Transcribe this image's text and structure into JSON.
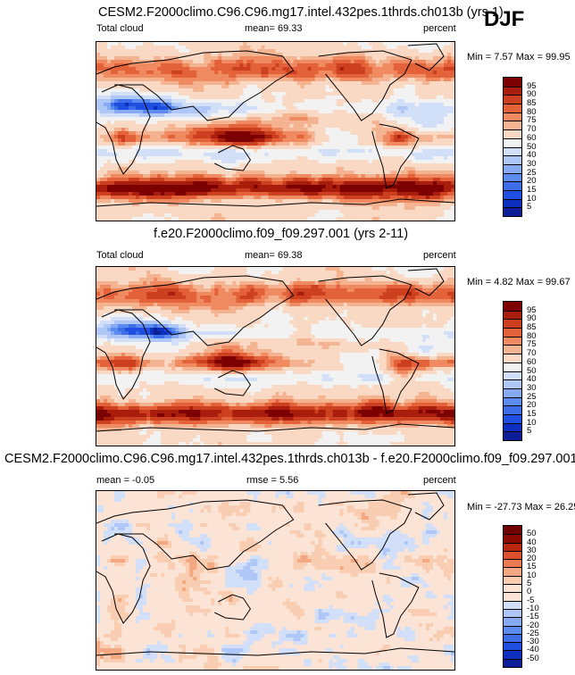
{
  "season": "DJF",
  "panels": [
    {
      "id": "p1",
      "title": "CESM2.F2000climo.C96.C96.mg17.intel.432pes.1thrds.ch013b (yrs 1)",
      "left_label": "Total cloud",
      "mean_text": "mean=  69.33",
      "rmse_text": "",
      "units": "percent",
      "minmax_text": "Min =   7.57 Max =  99.95"
    },
    {
      "id": "p2",
      "title": "f.e20.F2000climo.f09_f09.297.001 (yrs 2-11)",
      "left_label": "Total cloud",
      "mean_text": "mean=  69.38",
      "rmse_text": "",
      "units": "percent",
      "minmax_text": "Min =   4.82 Max =  99.67"
    },
    {
      "id": "p3",
      "title": "CESM2.F2000climo.C96.C96.mg17.intel.432pes.1thrds.ch013b - f.e20.F2000climo.f09_f09.297.001",
      "left_label": "mean =  -0.05",
      "mean_text": "",
      "rmse_text": "rmse =   5.56",
      "units": "percent",
      "minmax_text": "Min = -27.73 Max =  26.25"
    }
  ],
  "chart_data": [
    {
      "type": "heatmap",
      "title": "CESM2.F2000climo.C96.C96.mg17.intel.432pes.1thrds.ch013b (yrs 1)",
      "variable": "Total cloud",
      "units": "percent",
      "mean": 69.33,
      "min": 7.57,
      "max": 99.95,
      "colorbar_levels": [
        5,
        10,
        15,
        20,
        25,
        30,
        40,
        50,
        60,
        70,
        75,
        80,
        85,
        90,
        95
      ],
      "colorbar_colors": [
        "#0b1e96",
        "#0d2fc0",
        "#1f4fe0",
        "#3d6ee8",
        "#5c8cf0",
        "#86aaf3",
        "#aec7f7",
        "#d2dff8",
        "#f2f2f2",
        "#f9d8c4",
        "#f4b391",
        "#ef8a61",
        "#e4623a",
        "#cc4020",
        "#a91d0d",
        "#7d0000"
      ]
    },
    {
      "type": "heatmap",
      "title": "f.e20.F2000climo.f09_f09.297.001 (yrs 2-11)",
      "variable": "Total cloud",
      "units": "percent",
      "mean": 69.38,
      "min": 4.82,
      "max": 99.67,
      "colorbar_levels": [
        5,
        10,
        15,
        20,
        25,
        30,
        40,
        50,
        60,
        70,
        75,
        80,
        85,
        90,
        95
      ],
      "colorbar_colors": [
        "#0b1e96",
        "#0d2fc0",
        "#1f4fe0",
        "#3d6ee8",
        "#5c8cf0",
        "#86aaf3",
        "#aec7f7",
        "#d2dff8",
        "#f2f2f2",
        "#f9d8c4",
        "#f4b391",
        "#ef8a61",
        "#e4623a",
        "#cc4020",
        "#a91d0d",
        "#7d0000"
      ]
    },
    {
      "type": "heatmap",
      "title": "CESM2.F2000climo.C96.C96.mg17.intel.432pes.1thrds.ch013b - f.e20.F2000climo.f09_f09.297.001",
      "units": "percent",
      "mean": -0.05,
      "rmse": 5.56,
      "min": -27.73,
      "max": 26.25,
      "colorbar_levels": [
        -50,
        -40,
        -30,
        -25,
        -20,
        -15,
        -10,
        -5,
        0,
        5,
        10,
        15,
        20,
        30,
        40,
        50
      ],
      "colorbar_colors": [
        "#0b1e96",
        "#0d2fc0",
        "#1f4fe0",
        "#3d6ee8",
        "#5c8cf0",
        "#86aaf3",
        "#aec7f7",
        "#d2dff8",
        "#fbe3d6",
        "#fbe3d6",
        "#f9cdb2",
        "#f4a882",
        "#ec7a52",
        "#dc5030",
        "#b8280f",
        "#8a0a00",
        "#700000"
      ]
    }
  ]
}
